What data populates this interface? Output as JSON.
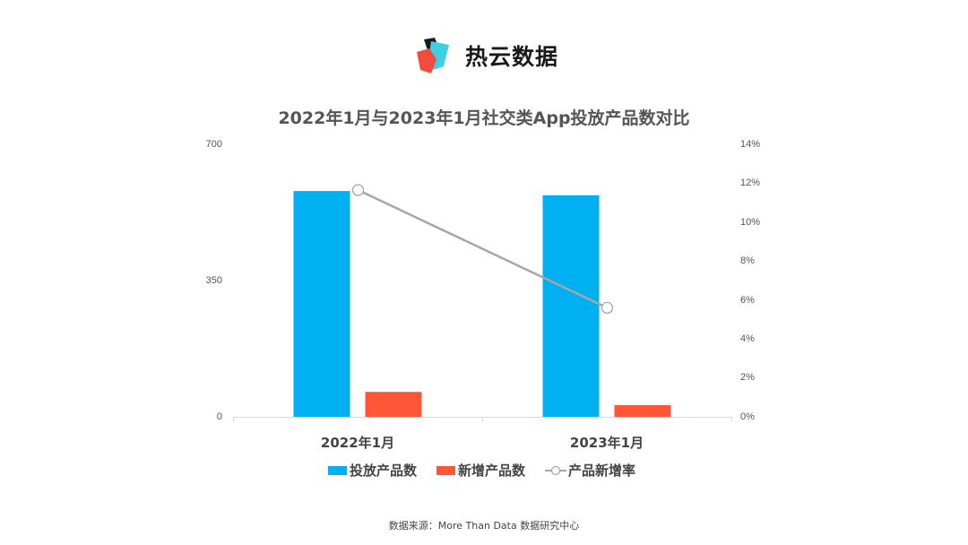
{
  "logo": {
    "text": "热云数据",
    "icon": "reyun-logo-icon"
  },
  "chart_data": {
    "type": "bar+line",
    "title": "2022年1月与2023年1月社交类App投放产品数对比",
    "categories": [
      "2022年1月",
      "2023年1月"
    ],
    "series": [
      {
        "name": "投放产品数",
        "type": "bar",
        "axis": "left",
        "color": "#00B0F0",
        "values": [
          580,
          569
        ]
      },
      {
        "name": "新增产品数",
        "type": "bar",
        "axis": "left",
        "color": "#FF5539",
        "values": [
          64,
          30
        ]
      },
      {
        "name": "产品新增率",
        "type": "line",
        "axis": "right",
        "color": "#A6A6A6",
        "values": [
          11.65,
          5.6
        ],
        "unit": "%"
      }
    ],
    "left_axis": {
      "ticks": [
        "700",
        "350",
        "0"
      ],
      "ylim": [
        0,
        700
      ]
    },
    "right_axis": {
      "ticks": [
        "14%",
        "12%",
        "10%",
        "8%",
        "6%",
        "4%",
        "2%",
        "0%"
      ],
      "ylim": [
        0,
        14
      ]
    },
    "xlabel": "",
    "ylabel": "",
    "grid": false,
    "legend_position": "bottom"
  },
  "legend": {
    "items": [
      "投放产品数",
      "新增产品数",
      "产品新增率"
    ]
  },
  "source": "数据来源：More Than Data 数据研究中心"
}
